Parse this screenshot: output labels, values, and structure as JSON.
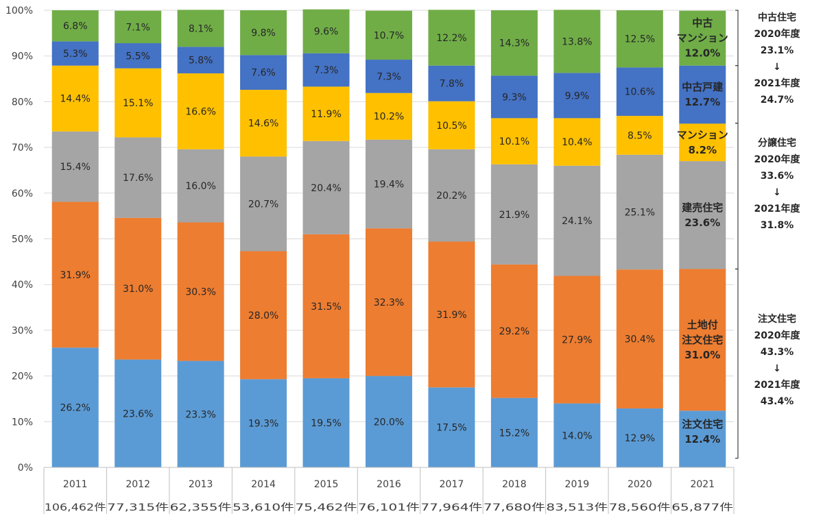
{
  "chart_data": {
    "type": "bar",
    "stacked": true,
    "percent": true,
    "ylim": [
      0,
      100
    ],
    "yticks": [
      "0%",
      "10%",
      "20%",
      "30%",
      "40%",
      "50%",
      "60%",
      "70%",
      "80%",
      "90%",
      "100%"
    ],
    "categories": [
      "2011",
      "2012",
      "2013",
      "2014",
      "2015",
      "2016",
      "2017",
      "2018",
      "2019",
      "2020",
      "2021"
    ],
    "counts": [
      "106,462件",
      "77,315件",
      "62,355件",
      "53,610件",
      "75,462件",
      "76,101件",
      "77,964件",
      "77,680件",
      "83,513件",
      "78,560件",
      "65,877件"
    ],
    "series": [
      {
        "name": "注文住宅",
        "color": "#5b9bd5",
        "values": [
          26.2,
          23.6,
          23.3,
          19.3,
          19.5,
          20.0,
          17.5,
          15.2,
          14.0,
          12.9,
          12.4
        ],
        "labels": [
          "26.2%",
          "23.6%",
          "23.3%",
          "19.3%",
          "19.5%",
          "20.0%",
          "17.5%",
          "15.2%",
          "14.0%",
          "12.9%",
          ""
        ]
      },
      {
        "name": "土地付注文住宅",
        "color": "#ed7d31",
        "values": [
          31.9,
          31.0,
          30.3,
          28.0,
          31.5,
          32.3,
          31.9,
          29.2,
          27.9,
          30.4,
          31.0
        ],
        "labels": [
          "31.9%",
          "31.0%",
          "30.3%",
          "28.0%",
          "31.5%",
          "32.3%",
          "31.9%",
          "29.2%",
          "27.9%",
          "30.4%",
          ""
        ]
      },
      {
        "name": "建売住宅",
        "color": "#a5a5a5",
        "values": [
          15.4,
          17.6,
          16.0,
          20.7,
          20.4,
          19.4,
          20.2,
          21.9,
          24.1,
          25.1,
          23.6
        ],
        "labels": [
          "15.4%",
          "17.6%",
          "16.0%",
          "20.7%",
          "20.4%",
          "19.4%",
          "20.2%",
          "21.9%",
          "24.1%",
          "25.1%",
          ""
        ]
      },
      {
        "name": "マンション",
        "color": "#ffc000",
        "values": [
          14.4,
          15.1,
          16.6,
          14.6,
          11.9,
          10.2,
          10.5,
          10.1,
          10.4,
          8.5,
          8.2
        ],
        "labels": [
          "14.4%",
          "15.1%",
          "16.6%",
          "14.6%",
          "11.9%",
          "10.2%",
          "10.5%",
          "10.1%",
          "10.4%",
          "8.5%",
          ""
        ]
      },
      {
        "name": "中古戸建",
        "color": "#4472c4",
        "values": [
          5.3,
          5.5,
          5.8,
          7.6,
          7.3,
          7.3,
          7.8,
          9.3,
          9.9,
          10.6,
          12.7
        ],
        "labels": [
          "5.3%",
          "5.5%",
          "5.8%",
          "7.6%",
          "7.3%",
          "7.3%",
          "7.8%",
          "9.3%",
          "9.9%",
          "10.6%",
          ""
        ]
      },
      {
        "name": "中古マンション",
        "color": "#70ad47",
        "values": [
          6.8,
          7.1,
          8.1,
          9.8,
          9.6,
          10.7,
          12.2,
          14.3,
          13.8,
          12.5,
          12.0
        ],
        "labels": [
          "6.8%",
          "7.1%",
          "8.1%",
          "9.8%",
          "9.6%",
          "10.7%",
          "12.2%",
          "14.3%",
          "13.8%",
          "12.5%",
          ""
        ]
      }
    ],
    "last_bar_labels": [
      [
        "注文住宅",
        "12.4%"
      ],
      [
        "土地付",
        "注文住宅",
        "31.0%"
      ],
      [
        "建売住宅",
        "23.6%"
      ],
      [
        "マンション",
        "8.2%"
      ],
      [
        "中古戸建",
        "12.7%"
      ],
      [
        "中古",
        "マンション",
        "12.0%"
      ]
    ],
    "brackets": [
      {
        "from": 100,
        "to": 87.9
      },
      {
        "from": 87.9,
        "to": 75.3
      },
      {
        "from": 75.3,
        "to": 43.4
      },
      {
        "from": 43.4,
        "to": 2.0
      }
    ],
    "annotations": [
      {
        "lines": [
          "中古住宅",
          "2020年度",
          "23.1%",
          "↓",
          "2021年度",
          "24.7%"
        ]
      },
      {
        "lines": [
          "分譲住宅",
          "2020年度",
          "33.6%",
          "↓",
          "2021年度",
          "31.8%"
        ]
      },
      {
        "lines": [
          "注文住宅",
          "2020年度",
          "43.3%",
          "↓",
          "2021年度",
          "43.4%"
        ]
      }
    ],
    "colors": {
      "grid": "#d9d9d9",
      "axis": "#bfbfbf",
      "text": "#404040"
    }
  }
}
